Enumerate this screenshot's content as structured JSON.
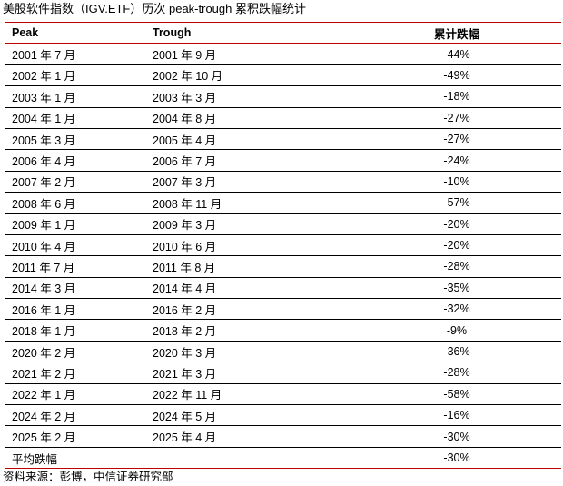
{
  "title": "美股软件指数（IGV.ETF）历次 peak-trough 累积跌幅统计",
  "columns": [
    "Peak",
    "Trough",
    "累计跌幅"
  ],
  "rows": [
    [
      "2001 年 7 月",
      "2001 年 9 月",
      "-44%"
    ],
    [
      "2002 年 1 月",
      "2002 年 10 月",
      "-49%"
    ],
    [
      "2003 年 1 月",
      "2003 年 3 月",
      "-18%"
    ],
    [
      "2004 年 1 月",
      "2004 年 8 月",
      "-27%"
    ],
    [
      "2005 年 3 月",
      "2005 年 4 月",
      "-27%"
    ],
    [
      "2006 年 4 月",
      "2006 年 7 月",
      "-24%"
    ],
    [
      "2007 年 2 月",
      "2007 年 3 月",
      "-10%"
    ],
    [
      "2008 年 6 月",
      "2008 年 11 月",
      "-57%"
    ],
    [
      "2009 年 1 月",
      "2009 年 3 月",
      "-20%"
    ],
    [
      "2010 年 4 月",
      "2010 年 6 月",
      "-20%"
    ],
    [
      "2011 年 7 月",
      "2011 年 8 月",
      "-28%"
    ],
    [
      "2014 年 3 月",
      "2014 年 4 月",
      "-35%"
    ],
    [
      "2016 年 1 月",
      "2016 年 2 月",
      "-32%"
    ],
    [
      "2018 年 1 月",
      "2018 年 2 月",
      "-9%"
    ],
    [
      "2020 年 2 月",
      "2020 年 3 月",
      "-36%"
    ],
    [
      "2021 年 2 月",
      "2021 年 3 月",
      "-28%"
    ],
    [
      "2022 年 1 月",
      "2022 年 11 月",
      "-58%"
    ],
    [
      "2024 年 2 月",
      "2024 年 5 月",
      "-16%"
    ],
    [
      "2025 年 2 月",
      "2025 年 4 月",
      "-30%"
    ]
  ],
  "average": {
    "label": "平均跌幅",
    "value": "-30%"
  },
  "source": "资料来源：彭博，中信证券研究部",
  "colors": {
    "rule_accent": "#c00000"
  }
}
